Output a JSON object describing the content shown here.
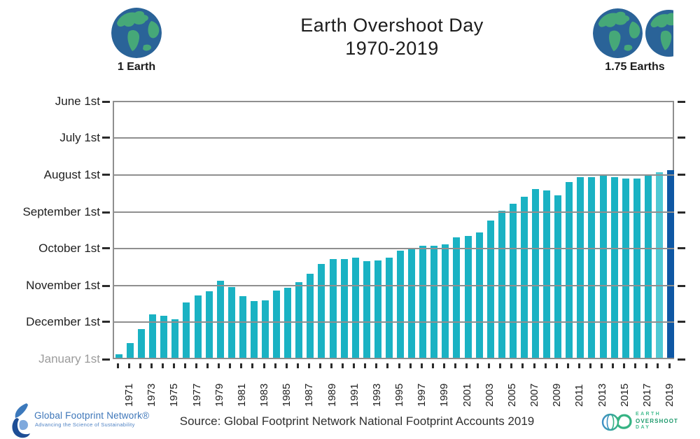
{
  "header": {
    "title_line1": "Earth Overshoot Day",
    "title_line2": "1970-2019",
    "left_legend": {
      "icon": "earth-globe-icon",
      "label": "1 Earth"
    },
    "right_legend": {
      "icon": "one-and-three-quarter-earths-icon",
      "label": "1.75 Earths"
    }
  },
  "chart_data": {
    "type": "bar",
    "title": "Earth Overshoot Day 1970-2019",
    "y_axis": {
      "tick_labels": [
        "June 1st",
        "July 1st",
        "August 1st",
        "September 1st",
        "October 1st",
        "November 1st",
        "December 1st",
        "January 1st"
      ],
      "note": "Dates earlier in the year are higher on the axis; the bottom baseline is January 1st. Each bar top marks that year's overshoot date.",
      "grid": true
    },
    "x_axis": {
      "tick_labels": [
        "1971",
        "1973",
        "1975",
        "1977",
        "1979",
        "1981",
        "1983",
        "1985",
        "1987",
        "1989",
        "1991",
        "1993",
        "1995",
        "1997",
        "1999",
        "2001",
        "2003",
        "2005",
        "2007",
        "2009",
        "2011",
        "2013",
        "2015",
        "2017",
        "2019"
      ],
      "tick_marks_every_year": true
    },
    "series": [
      {
        "year": 1970,
        "overshoot_date": "December 29",
        "month": 12,
        "day": 29
      },
      {
        "year": 1971,
        "overshoot_date": "December 20",
        "month": 12,
        "day": 20
      },
      {
        "year": 1972,
        "overshoot_date": "December 8",
        "month": 12,
        "day": 8
      },
      {
        "year": 1973,
        "overshoot_date": "November 26",
        "month": 11,
        "day": 26
      },
      {
        "year": 1974,
        "overshoot_date": "November 27",
        "month": 11,
        "day": 27
      },
      {
        "year": 1975,
        "overshoot_date": "November 30",
        "month": 11,
        "day": 30
      },
      {
        "year": 1976,
        "overshoot_date": "November 16",
        "month": 11,
        "day": 16
      },
      {
        "year": 1977,
        "overshoot_date": "November 10",
        "month": 11,
        "day": 10
      },
      {
        "year": 1978,
        "overshoot_date": "November 7",
        "month": 11,
        "day": 7
      },
      {
        "year": 1979,
        "overshoot_date": "October 29",
        "month": 10,
        "day": 29
      },
      {
        "year": 1980,
        "overshoot_date": "November 3",
        "month": 11,
        "day": 3
      },
      {
        "year": 1981,
        "overshoot_date": "November 11",
        "month": 11,
        "day": 11
      },
      {
        "year": 1982,
        "overshoot_date": "November 15",
        "month": 11,
        "day": 15
      },
      {
        "year": 1983,
        "overshoot_date": "November 14",
        "month": 11,
        "day": 14
      },
      {
        "year": 1984,
        "overshoot_date": "November 6",
        "month": 11,
        "day": 6
      },
      {
        "year": 1985,
        "overshoot_date": "November 4",
        "month": 11,
        "day": 4
      },
      {
        "year": 1986,
        "overshoot_date": "October 30",
        "month": 10,
        "day": 30
      },
      {
        "year": 1987,
        "overshoot_date": "October 23",
        "month": 10,
        "day": 23
      },
      {
        "year": 1988,
        "overshoot_date": "October 15",
        "month": 10,
        "day": 15
      },
      {
        "year": 1989,
        "overshoot_date": "October 11",
        "month": 10,
        "day": 11
      },
      {
        "year": 1990,
        "overshoot_date": "October 11",
        "month": 10,
        "day": 11
      },
      {
        "year": 1991,
        "overshoot_date": "October 10",
        "month": 10,
        "day": 10
      },
      {
        "year": 1992,
        "overshoot_date": "October 13",
        "month": 10,
        "day": 13
      },
      {
        "year": 1993,
        "overshoot_date": "October 12",
        "month": 10,
        "day": 12
      },
      {
        "year": 1994,
        "overshoot_date": "October 10",
        "month": 10,
        "day": 10
      },
      {
        "year": 1995,
        "overshoot_date": "October 4",
        "month": 10,
        "day": 4
      },
      {
        "year": 1996,
        "overshoot_date": "October 2",
        "month": 10,
        "day": 2
      },
      {
        "year": 1997,
        "overshoot_date": "September 30",
        "month": 9,
        "day": 30
      },
      {
        "year": 1998,
        "overshoot_date": "September 30",
        "month": 9,
        "day": 30
      },
      {
        "year": 1999,
        "overshoot_date": "September 29",
        "month": 9,
        "day": 29
      },
      {
        "year": 2000,
        "overshoot_date": "September 23",
        "month": 9,
        "day": 23
      },
      {
        "year": 2001,
        "overshoot_date": "September 22",
        "month": 9,
        "day": 22
      },
      {
        "year": 2002,
        "overshoot_date": "September 19",
        "month": 9,
        "day": 19
      },
      {
        "year": 2003,
        "overshoot_date": "September 9",
        "month": 9,
        "day": 9
      },
      {
        "year": 2004,
        "overshoot_date": "September 1",
        "month": 9,
        "day": 1
      },
      {
        "year": 2005,
        "overshoot_date": "August 26",
        "month": 8,
        "day": 26
      },
      {
        "year": 2006,
        "overshoot_date": "August 20",
        "month": 8,
        "day": 20
      },
      {
        "year": 2007,
        "overshoot_date": "August 14",
        "month": 8,
        "day": 14
      },
      {
        "year": 2008,
        "overshoot_date": "August 15",
        "month": 8,
        "day": 15
      },
      {
        "year": 2009,
        "overshoot_date": "August 19",
        "month": 8,
        "day": 19
      },
      {
        "year": 2010,
        "overshoot_date": "August 8",
        "month": 8,
        "day": 8
      },
      {
        "year": 2011,
        "overshoot_date": "August 4",
        "month": 8,
        "day": 4
      },
      {
        "year": 2012,
        "overshoot_date": "August 4",
        "month": 8,
        "day": 4
      },
      {
        "year": 2013,
        "overshoot_date": "August 3",
        "month": 8,
        "day": 3
      },
      {
        "year": 2014,
        "overshoot_date": "August 4",
        "month": 8,
        "day": 4
      },
      {
        "year": 2015,
        "overshoot_date": "August 5",
        "month": 8,
        "day": 5
      },
      {
        "year": 2016,
        "overshoot_date": "August 5",
        "month": 8,
        "day": 5
      },
      {
        "year": 2017,
        "overshoot_date": "August 2",
        "month": 8,
        "day": 2
      },
      {
        "year": 2018,
        "overshoot_date": "July 31",
        "month": 7,
        "day": 31
      },
      {
        "year": 2019,
        "overshoot_date": "July 29",
        "month": 7,
        "day": 29
      }
    ],
    "colors": {
      "bar": "#1ab2c3",
      "bar_2018": "#4fc9d4",
      "bar_2019": "#0e57a4",
      "gridline": "#8f8f8f",
      "january_label": "#9b9b9b"
    },
    "legend_position": "none"
  },
  "footer": {
    "left_logo": {
      "icon": "footprint-leaf-icon",
      "line1": "Global Footprint Network®",
      "line2": "Advancing the Science of Sustainability"
    },
    "source": "Source: Global Footprint Network National Footprint Accounts 2019",
    "right_logo": {
      "icon": "earth-overshoot-day-loop-icon",
      "line1": "EARTH",
      "line2": "OVERSHOOT",
      "line3": "DAY"
    }
  }
}
